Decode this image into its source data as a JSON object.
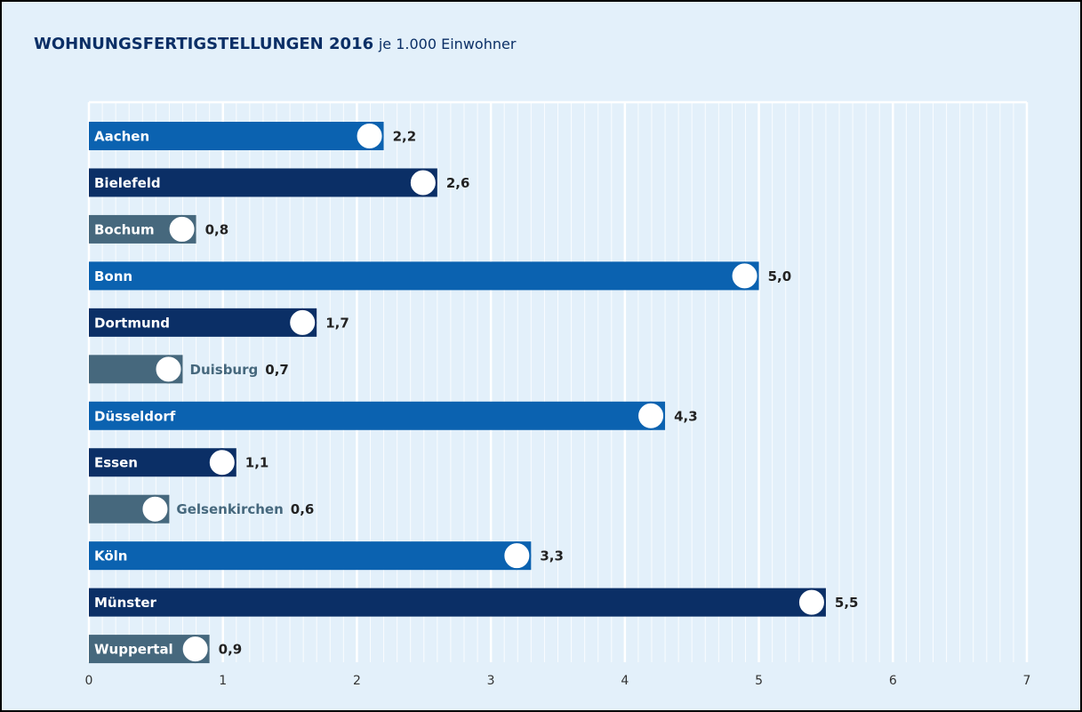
{
  "chart_data": {
    "type": "barh",
    "title": "WOHNUNGSFERTIGSTELLUNGEN 2016",
    "subtitle": "je 1.000 Einwohner",
    "categories": [
      "Aachen",
      "Bielefeld",
      "Bochum",
      "Bonn",
      "Dortmund",
      "Duisburg",
      "Düsseldorf",
      "Essen",
      "Gelsenkirchen",
      "Köln",
      "Münster",
      "Wuppertal"
    ],
    "values": [
      2.2,
      2.6,
      0.8,
      5.0,
      1.7,
      0.7,
      4.3,
      1.1,
      0.6,
      3.3,
      5.5,
      0.9
    ],
    "value_labels": [
      "2,2",
      "2,6",
      "0,8",
      "5,0",
      "1,7",
      "0,7",
      "4,3",
      "1,1",
      "0,6",
      "3,3",
      "5,5",
      "0,9"
    ],
    "colors": [
      "#0b62b0",
      "#0b2f66",
      "#46687d",
      "#0b62b0",
      "#0b2f66",
      "#46687d",
      "#0b62b0",
      "#0b2f66",
      "#46687d",
      "#0b62b0",
      "#0b2f66",
      "#46687d"
    ],
    "xlim": [
      0,
      7
    ],
    "xticks": [
      0,
      1,
      2,
      3,
      4,
      5,
      6,
      7
    ],
    "grid": true
  }
}
